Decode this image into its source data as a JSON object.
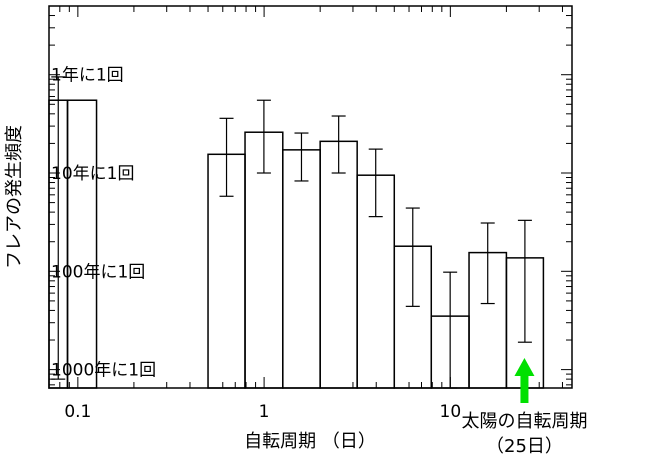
{
  "chart_data": {
    "type": "histogram",
    "xlabel": "自転周期 （日）",
    "ylabel": "フレアの発生頻度",
    "x_scale": "log",
    "y_scale": "log",
    "xlim": [
      0.07,
      45
    ],
    "ylim": [
      0.00065,
      5
    ],
    "x_ticks": [
      {
        "value": 0.1,
        "label": "0.1"
      },
      {
        "value": 1,
        "label": "1"
      },
      {
        "value": 10,
        "label": "10"
      }
    ],
    "y_levels": [
      {
        "value": 1,
        "label": "1年に1回"
      },
      {
        "value": 0.1,
        "label": "10年に1回"
      },
      {
        "value": 0.01,
        "label": "100年に1回"
      },
      {
        "value": 0.001,
        "label": "1000年に1回"
      }
    ],
    "bars": [
      {
        "x_start": 0.07,
        "x_end": 0.088,
        "value": 0.55,
        "err_low": 0.0008,
        "err_high": 0.95
      },
      {
        "x_start": 0.088,
        "x_end": 0.126,
        "value": 0.55
      },
      {
        "x_start": 0.5,
        "x_end": 0.79,
        "value": 0.155,
        "err_low": 0.058,
        "err_high": 0.36
      },
      {
        "x_start": 0.79,
        "x_end": 1.26,
        "value": 0.26,
        "err_low": 0.1,
        "err_high": 0.55
      },
      {
        "x_start": 1.26,
        "x_end": 2.0,
        "value": 0.172,
        "err_low": 0.083,
        "err_high": 0.255
      },
      {
        "x_start": 2.0,
        "x_end": 3.16,
        "value": 0.21,
        "err_low": 0.1,
        "err_high": 0.38
      },
      {
        "x_start": 3.16,
        "x_end": 5.0,
        "value": 0.095,
        "err_low": 0.036,
        "err_high": 0.175
      },
      {
        "x_start": 5.0,
        "x_end": 7.9,
        "value": 0.018,
        "err_low": 0.0044,
        "err_high": 0.044
      },
      {
        "x_start": 7.9,
        "x_end": 12.6,
        "value": 0.0035,
        "err_low": 0.00065,
        "err_high": 0.0098
      },
      {
        "x_start": 12.6,
        "x_end": 20.0,
        "value": 0.0155,
        "err_low": 0.0047,
        "err_high": 0.031
      },
      {
        "x_start": 20.0,
        "x_end": 31.6,
        "value": 0.0137,
        "err_low": 0.0019,
        "err_high": 0.033
      }
    ],
    "annotation": {
      "x": 25,
      "line1": "太陽の自転周期",
      "line2": "（25日）",
      "color": "#00e000"
    }
  }
}
